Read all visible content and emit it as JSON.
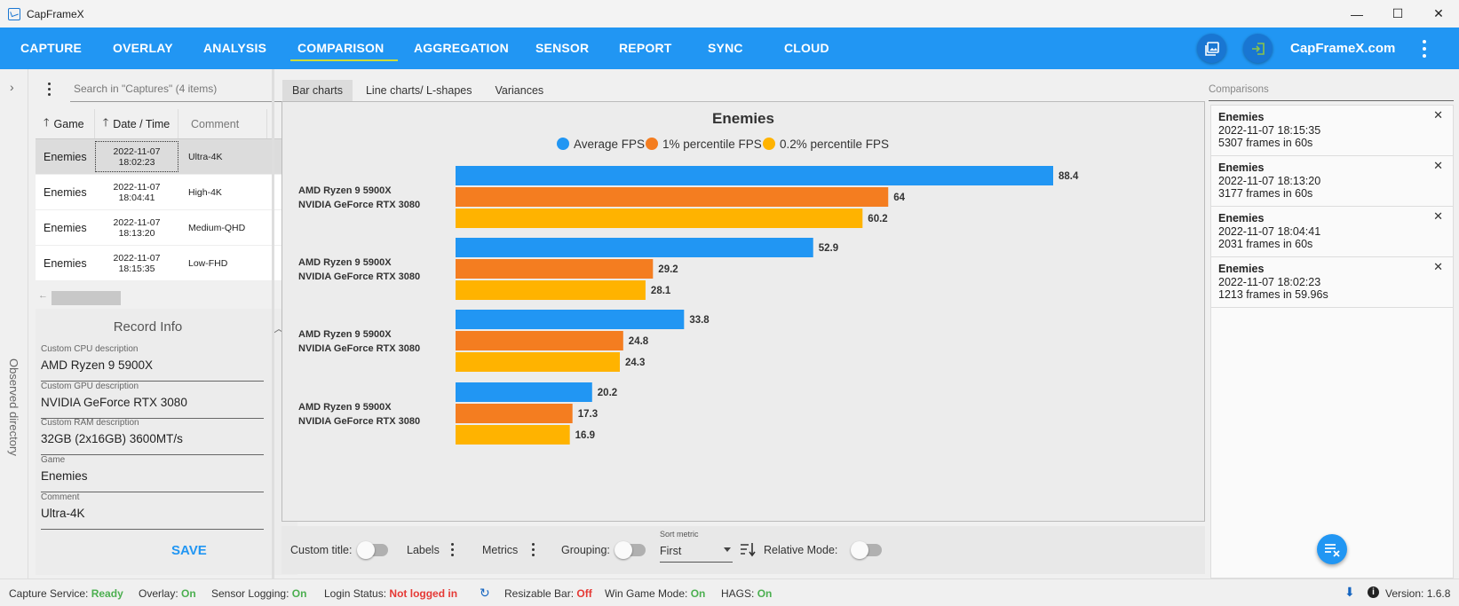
{
  "window": {
    "title": "CapFrameX",
    "minimize": "—",
    "maximize": "☐",
    "close": "✕"
  },
  "nav": {
    "items": [
      "CAPTURE",
      "OVERLAY",
      "ANALYSIS",
      "COMPARISON",
      "AGGREGATION",
      "SENSOR",
      "REPORT",
      "SYNC",
      "CLOUD"
    ],
    "active": "COMPARISON",
    "site": "CapFrameX.com",
    "accent": "#2196f3"
  },
  "sidebar": {
    "observed_directory": "Observed directory"
  },
  "captures": {
    "search_placeholder": "Search in \"Captures\" (4 items)",
    "headers": {
      "game": "Game",
      "date": "Date / Time",
      "comment": "Comment"
    },
    "rows": [
      {
        "game": "Enemies",
        "date": "2022-11-07",
        "time": "18:02:23",
        "comment": "Ultra-4K",
        "selected": true
      },
      {
        "game": "Enemies",
        "date": "2022-11-07",
        "time": "18:04:41",
        "comment": "High-4K"
      },
      {
        "game": "Enemies",
        "date": "2022-11-07",
        "time": "18:13:20",
        "comment": "Medium-QHD"
      },
      {
        "game": "Enemies",
        "date": "2022-11-07",
        "time": "18:15:35",
        "comment": "Low-FHD"
      }
    ]
  },
  "record": {
    "title": "Record Info",
    "fields": [
      {
        "label": "Custom CPU description",
        "value": "AMD Ryzen 9 5900X"
      },
      {
        "label": "Custom GPU description",
        "value": "NVIDIA GeForce RTX 3080"
      },
      {
        "label": "Custom RAM description",
        "value": "32GB (2x16GB) 3600MT/s"
      },
      {
        "label": "Game",
        "value": "Enemies"
      },
      {
        "label": "Comment",
        "value": "Ultra-4K"
      }
    ],
    "save": "SAVE"
  },
  "tabs": [
    "Bar charts",
    "Line charts/ L-shapes",
    "Variances"
  ],
  "chart_data": {
    "type": "bar",
    "orientation": "horizontal",
    "title": "Enemies",
    "legend_position": "top",
    "categories": [
      [
        "AMD Ryzen 9 5900X",
        "NVIDIA GeForce RTX 3080"
      ],
      [
        "AMD Ryzen 9 5900X",
        "NVIDIA GeForce RTX 3080"
      ],
      [
        "AMD Ryzen 9 5900X",
        "NVIDIA GeForce RTX 3080"
      ],
      [
        "AMD Ryzen 9 5900X",
        "NVIDIA GeForce RTX 3080"
      ]
    ],
    "series": [
      {
        "name": "Average FPS",
        "color": "#2196f3",
        "values": [
          88.4,
          52.9,
          33.8,
          20.2
        ]
      },
      {
        "name": "1% percentile FPS",
        "color": "#f47d20",
        "values": [
          64,
          29.2,
          24.8,
          17.3
        ]
      },
      {
        "name": "0.2% percentile FPS",
        "color": "#ffb300",
        "values": [
          60.2,
          28.1,
          24.3,
          16.9
        ]
      }
    ],
    "xlim": [
      0,
      88.4
    ]
  },
  "controls": {
    "custom_title": "Custom title:",
    "labels": "Labels",
    "metrics": "Metrics",
    "grouping": "Grouping:",
    "sort_metric_label": "Sort metric",
    "sort_metric_value": "First",
    "relative_mode": "Relative Mode:"
  },
  "comparisons": {
    "header": "Comparisons",
    "items": [
      {
        "game": "Enemies",
        "date": "2022-11-07 18:15:35",
        "frames": "5307 frames in 60s"
      },
      {
        "game": "Enemies",
        "date": "2022-11-07 18:13:20",
        "frames": "3177 frames in 60s"
      },
      {
        "game": "Enemies",
        "date": "2022-11-07 18:04:41",
        "frames": "2031 frames in 60s"
      },
      {
        "game": "Enemies",
        "date": "2022-11-07 18:02:23",
        "frames": "1213 frames in 59.96s"
      }
    ]
  },
  "status": {
    "capture_service_label": "Capture Service:",
    "capture_service": "Ready",
    "overlay_label": "Overlay:",
    "overlay": "On",
    "sensor_label": "Sensor Logging:",
    "sensor": "On",
    "login_label": "Login Status:",
    "login": "Not logged in",
    "rebar_label": "Resizable Bar:",
    "rebar": "Off",
    "gamemode_label": "Win Game Mode:",
    "gamemode": "On",
    "hags_label": "HAGS:",
    "hags": "On",
    "version_label": "Version:",
    "version": "1.6.8"
  }
}
